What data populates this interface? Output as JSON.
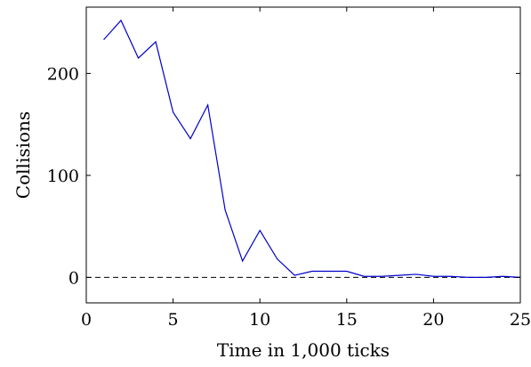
{
  "chart_data": {
    "type": "line",
    "title": "",
    "xlabel": "Time in 1,000 ticks",
    "ylabel": "Collisions",
    "xlim": [
      0,
      25
    ],
    "ylim": [
      -25,
      265
    ],
    "grid": false,
    "legend": "none",
    "xticks": [
      0,
      5,
      10,
      15,
      20,
      25
    ],
    "xtick_labels": [
      "0",
      "5",
      "10",
      "15",
      "20",
      "25"
    ],
    "yticks": [
      0,
      100,
      200
    ],
    "ytick_labels": [
      "0",
      "100",
      "200"
    ],
    "series": [
      {
        "color": "#0000cc",
        "style": "solid",
        "x": [
          1,
          2,
          3,
          4,
          5,
          6,
          7,
          8,
          9,
          10,
          11,
          12,
          13,
          14,
          15,
          16,
          17,
          18,
          19,
          20,
          21,
          22,
          23,
          24,
          25
        ],
        "y": [
          233,
          252,
          215,
          231,
          162,
          136,
          169,
          66,
          16,
          46,
          18,
          2,
          6,
          6,
          6,
          1,
          1,
          2,
          3,
          1,
          1,
          0,
          0,
          1,
          0
        ]
      }
    ],
    "reference_lines": [
      {
        "y": 0,
        "color": "#000000",
        "style": "dashed"
      }
    ]
  }
}
